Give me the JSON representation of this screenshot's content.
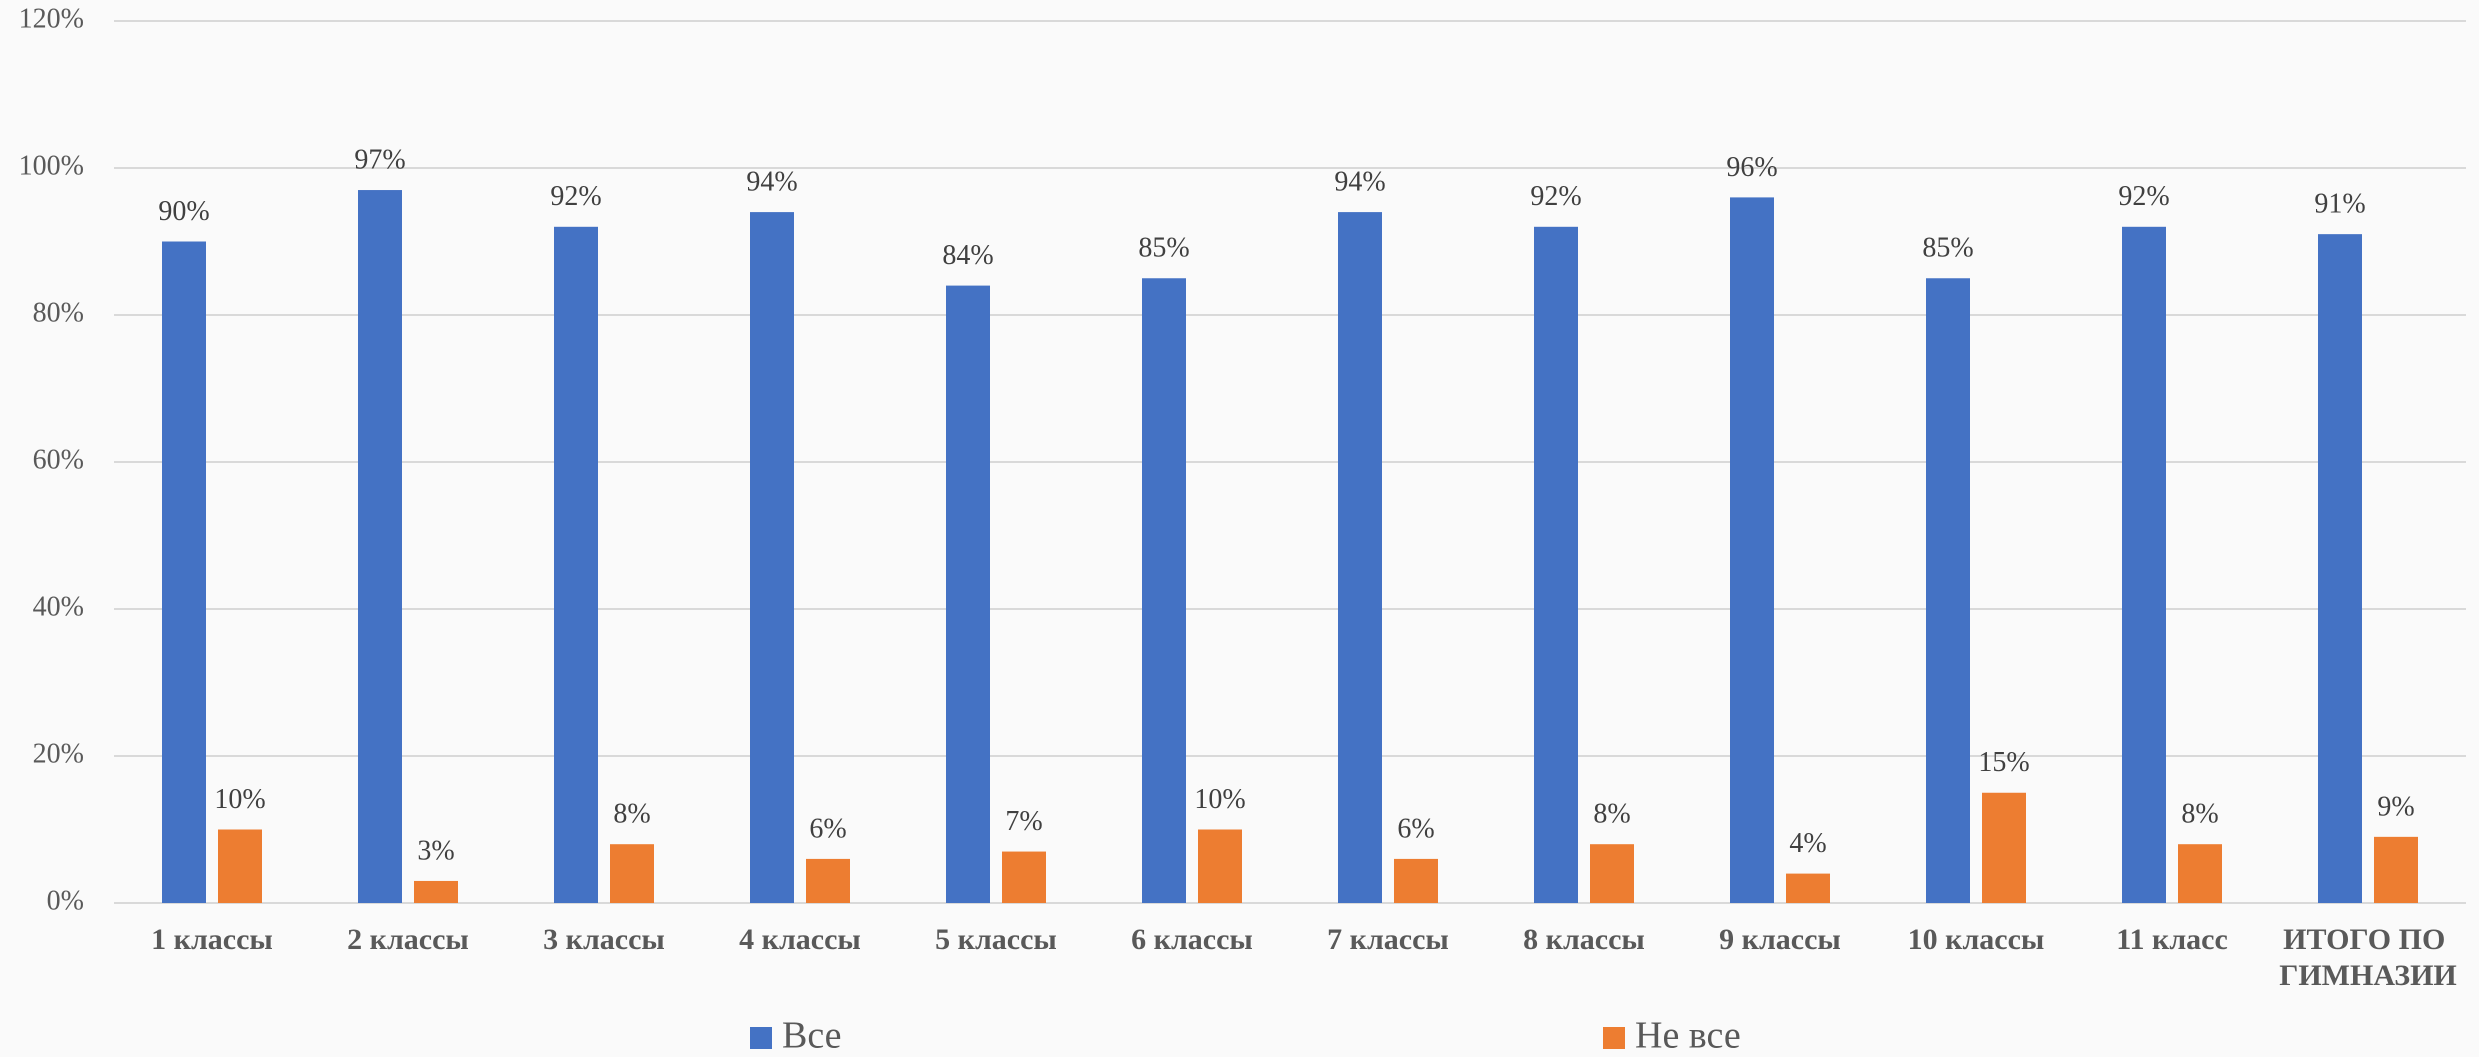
{
  "chart_data": {
    "type": "bar",
    "categories": [
      "1 классы",
      "2 классы",
      "3 классы",
      "4 классы",
      "5 классы",
      "6 классы",
      "7 классы",
      "8 классы",
      "9 классы",
      "10 классы",
      "11 класс",
      "ИТОГО ПО ГИМНАЗИИ"
    ],
    "series": [
      {
        "name": "Все",
        "color": "#4472c4",
        "values": [
          90,
          97,
          92,
          94,
          84,
          85,
          94,
          92,
          96,
          85,
          92,
          91
        ],
        "value_labels": [
          "90%",
          "97%",
          "92%",
          "94%",
          "84%",
          "85%",
          "94%",
          "92%",
          "96%",
          "85%",
          "92%",
          "91%"
        ]
      },
      {
        "name": "Не все",
        "color": "#ed7d31",
        "values": [
          10,
          3,
          8,
          6,
          7,
          10,
          6,
          8,
          4,
          15,
          8,
          9
        ],
        "value_labels": [
          "10%",
          "3%",
          "8%",
          "6%",
          "7%",
          "10%",
          "6%",
          "8%",
          "4%",
          "15%",
          "8%",
          "9%"
        ]
      }
    ],
    "ylim": [
      0,
      120
    ],
    "yticks": [
      {
        "value": 0,
        "label": "0%"
      },
      {
        "value": 20,
        "label": "20%"
      },
      {
        "value": 40,
        "label": "40%"
      },
      {
        "value": 60,
        "label": "60%"
      },
      {
        "value": 80,
        "label": "80%"
      },
      {
        "value": 100,
        "label": "100%"
      },
      {
        "value": 120,
        "label": "120%"
      }
    ],
    "grid": true,
    "legend": "bottom"
  }
}
